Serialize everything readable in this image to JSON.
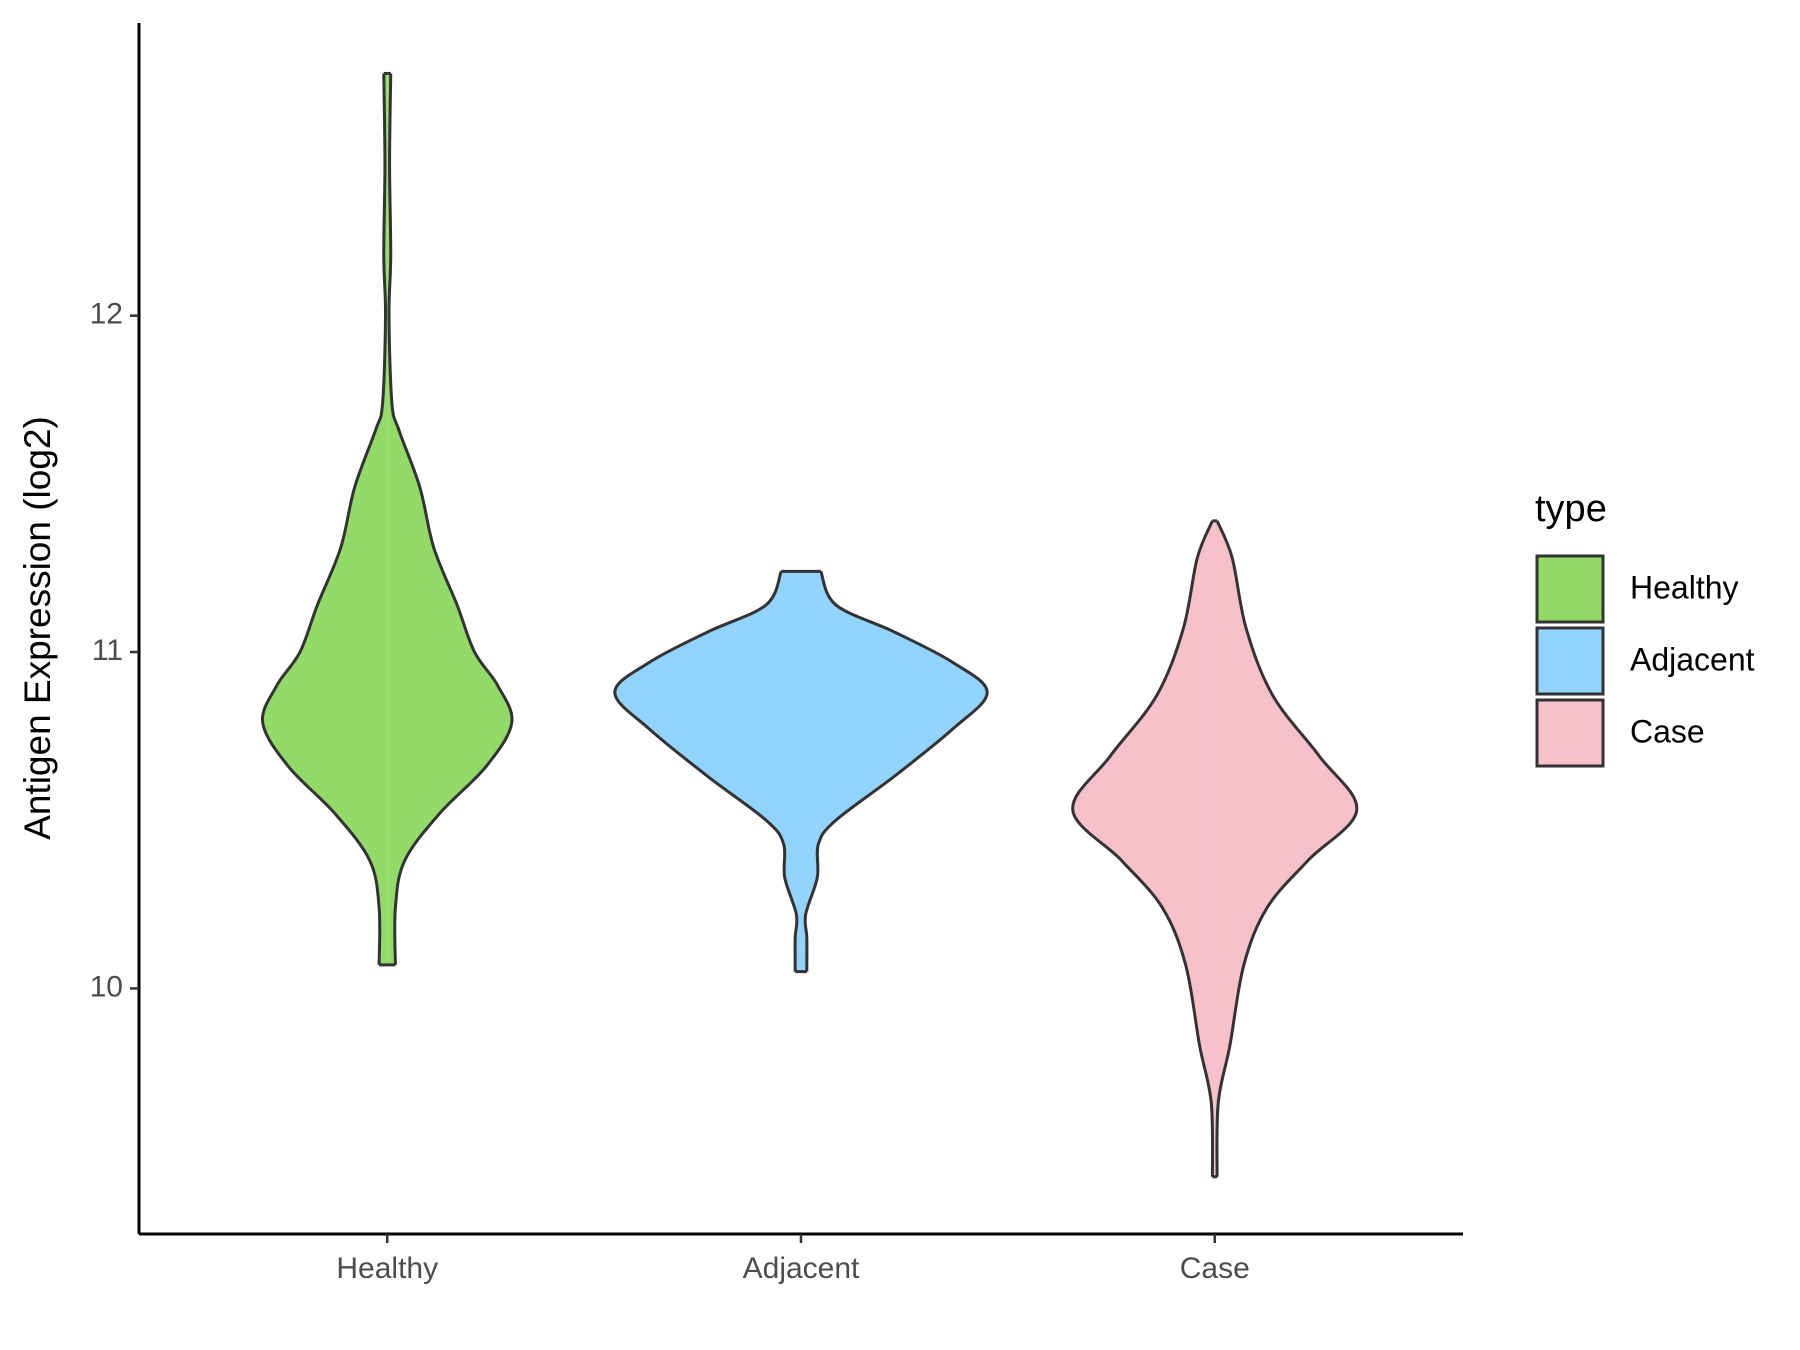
{
  "chart_data": {
    "type": "violin",
    "y_label": "Antigen Expression (log2)",
    "categories": [
      "Healthy",
      "Adjacent",
      "Case"
    ],
    "ylim": [
      9.27,
      12.87
    ],
    "yticks": [
      10,
      11,
      12
    ],
    "legend": {
      "title": "type",
      "position": "right"
    },
    "series": [
      {
        "name": "Healthy",
        "color": "#93db69",
        "y": [
          12.72,
          12.45,
          12.18,
          12.0,
          11.74,
          11.66,
          11.49,
          11.31,
          11.14,
          11.0,
          10.9,
          10.79,
          10.66,
          10.52,
          10.38,
          10.24,
          10.07
        ],
        "density": [
          0.03,
          0.02,
          0.03,
          0.015,
          0.04,
          0.1,
          0.28,
          0.4,
          0.6,
          0.75,
          0.95,
          1.07,
          0.85,
          0.45,
          0.15,
          0.07,
          0.07
        ]
      },
      {
        "name": "Adjacent",
        "color": "#93d3ff",
        "y": [
          11.24,
          11.14,
          11.06,
          10.97,
          10.88,
          10.77,
          10.63,
          10.5,
          10.43,
          10.33,
          10.22,
          10.15,
          10.05
        ],
        "density": [
          0.17,
          0.3,
          0.8,
          1.3,
          1.6,
          1.3,
          0.8,
          0.3,
          0.15,
          0.14,
          0.04,
          0.05,
          0.05
        ]
      },
      {
        "name": "Case",
        "color": "#f7c0cb",
        "y": [
          11.39,
          11.28,
          11.07,
          10.87,
          10.69,
          10.53,
          10.38,
          10.24,
          10.07,
          9.83,
          9.66,
          9.44
        ],
        "density": [
          0.02,
          0.15,
          0.27,
          0.5,
          0.9,
          1.22,
          0.8,
          0.45,
          0.25,
          0.13,
          0.03,
          0.02
        ]
      }
    ]
  }
}
